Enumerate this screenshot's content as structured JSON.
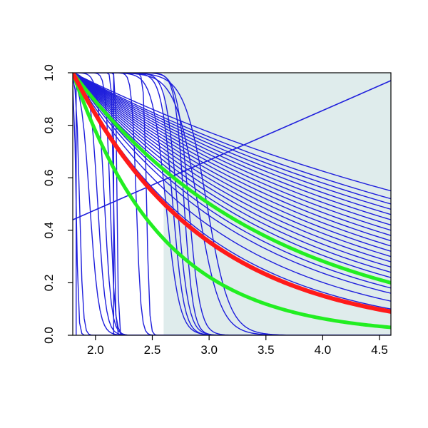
{
  "chart_data": {
    "type": "line",
    "title": "",
    "xlabel": "",
    "ylabel": "",
    "xlim": [
      1.8,
      4.6
    ],
    "ylim": [
      0.0,
      1.0
    ],
    "x_ticks": [
      2.0,
      2.5,
      3.0,
      3.5,
      4.0,
      4.5
    ],
    "x_tick_labels": [
      "2.0",
      "2.5",
      "3.0",
      "3.5",
      "4.0",
      "4.5"
    ],
    "y_ticks": [
      0.0,
      0.2,
      0.4,
      0.6,
      0.8,
      1.0
    ],
    "y_tick_labels": [
      "0.0",
      "0.2",
      "0.4",
      "0.6",
      "0.8",
      "1.0"
    ],
    "grid": false,
    "legend": "none",
    "shaded_region": {
      "x_from": 2.6,
      "x_to": 4.6,
      "color": "#dfecec"
    },
    "colors": {
      "ensemble": "#1f1fdc",
      "mean": "#ff1a1a",
      "bounds": "#22ee22",
      "axis": "#000000"
    },
    "ensemble_decay_curves": [
      {
        "x": [
          1.8,
          4.6
        ],
        "y": [
          1.0,
          0.55
        ]
      },
      {
        "x": [
          1.8,
          4.6
        ],
        "y": [
          1.0,
          0.52
        ]
      },
      {
        "x": [
          1.8,
          4.6
        ],
        "y": [
          1.0,
          0.5
        ]
      },
      {
        "x": [
          1.8,
          4.6
        ],
        "y": [
          1.0,
          0.48
        ]
      },
      {
        "x": [
          1.8,
          4.6
        ],
        "y": [
          1.0,
          0.46
        ]
      },
      {
        "x": [
          1.8,
          4.6
        ],
        "y": [
          1.0,
          0.44
        ]
      },
      {
        "x": [
          1.8,
          4.6
        ],
        "y": [
          1.0,
          0.42
        ]
      },
      {
        "x": [
          1.8,
          4.6
        ],
        "y": [
          1.0,
          0.4
        ]
      },
      {
        "x": [
          1.8,
          4.6
        ],
        "y": [
          1.0,
          0.38
        ]
      },
      {
        "x": [
          1.8,
          4.6
        ],
        "y": [
          1.0,
          0.36
        ]
      },
      {
        "x": [
          1.8,
          4.6
        ],
        "y": [
          1.0,
          0.34
        ]
      },
      {
        "x": [
          1.8,
          4.6
        ],
        "y": [
          1.0,
          0.32
        ]
      },
      {
        "x": [
          1.8,
          4.6
        ],
        "y": [
          1.0,
          0.3
        ]
      },
      {
        "x": [
          1.8,
          4.6
        ],
        "y": [
          1.0,
          0.28
        ]
      },
      {
        "x": [
          1.8,
          4.6
        ],
        "y": [
          1.0,
          0.26
        ]
      },
      {
        "x": [
          1.8,
          4.6
        ],
        "y": [
          1.0,
          0.24
        ]
      },
      {
        "x": [
          1.8,
          4.6
        ],
        "y": [
          1.0,
          0.22
        ]
      },
      {
        "x": [
          1.8,
          4.6
        ],
        "y": [
          1.0,
          0.2
        ]
      },
      {
        "x": [
          1.8,
          4.6
        ],
        "y": [
          1.0,
          0.18
        ]
      },
      {
        "x": [
          1.8,
          4.6
        ],
        "y": [
          1.0,
          0.16
        ]
      },
      {
        "x": [
          1.8,
          4.6
        ],
        "y": [
          1.0,
          0.13
        ]
      },
      {
        "x": [
          1.8,
          4.6
        ],
        "y": [
          1.0,
          0.1
        ]
      }
    ],
    "ensemble_step_curves": [
      {
        "center": 1.83,
        "width": 0.01
      },
      {
        "center": 1.86,
        "width": 0.015
      },
      {
        "center": 1.95,
        "width": 0.04
      },
      {
        "center": 2.02,
        "width": 0.035
      },
      {
        "center": 2.08,
        "width": 0.03
      },
      {
        "center": 2.13,
        "width": 0.02
      },
      {
        "center": 2.16,
        "width": 0.008
      },
      {
        "center": 2.19,
        "width": 0.006
      },
      {
        "center": 2.36,
        "width": 0.02
      },
      {
        "center": 2.45,
        "width": 0.012
      },
      {
        "center": 2.62,
        "width": 0.06
      },
      {
        "center": 2.68,
        "width": 0.05
      },
      {
        "center": 2.72,
        "width": 0.05
      },
      {
        "center": 2.78,
        "width": 0.04
      },
      {
        "center": 2.82,
        "width": 0.05
      },
      {
        "center": 2.9,
        "width": 0.1
      },
      {
        "center": 2.98,
        "width": 0.1
      }
    ],
    "ensemble_vertical_lines": [
      {
        "x": 1.83,
        "y": [
          0.0,
          1.0
        ]
      },
      {
        "x": 2.16,
        "y": [
          0.0,
          1.0
        ]
      }
    ],
    "ensemble_straight_line": {
      "x": [
        1.8,
        4.6
      ],
      "y": [
        0.44,
        0.97
      ]
    },
    "mean_curve": {
      "x": [
        1.8,
        4.6
      ],
      "y": [
        1.0,
        0.09
      ]
    },
    "bound_curves": [
      {
        "x": [
          1.8,
          4.6
        ],
        "y": [
          1.0,
          0.2
        ]
      },
      {
        "x": [
          1.8,
          4.6
        ],
        "y": [
          1.0,
          0.03
        ]
      }
    ]
  }
}
